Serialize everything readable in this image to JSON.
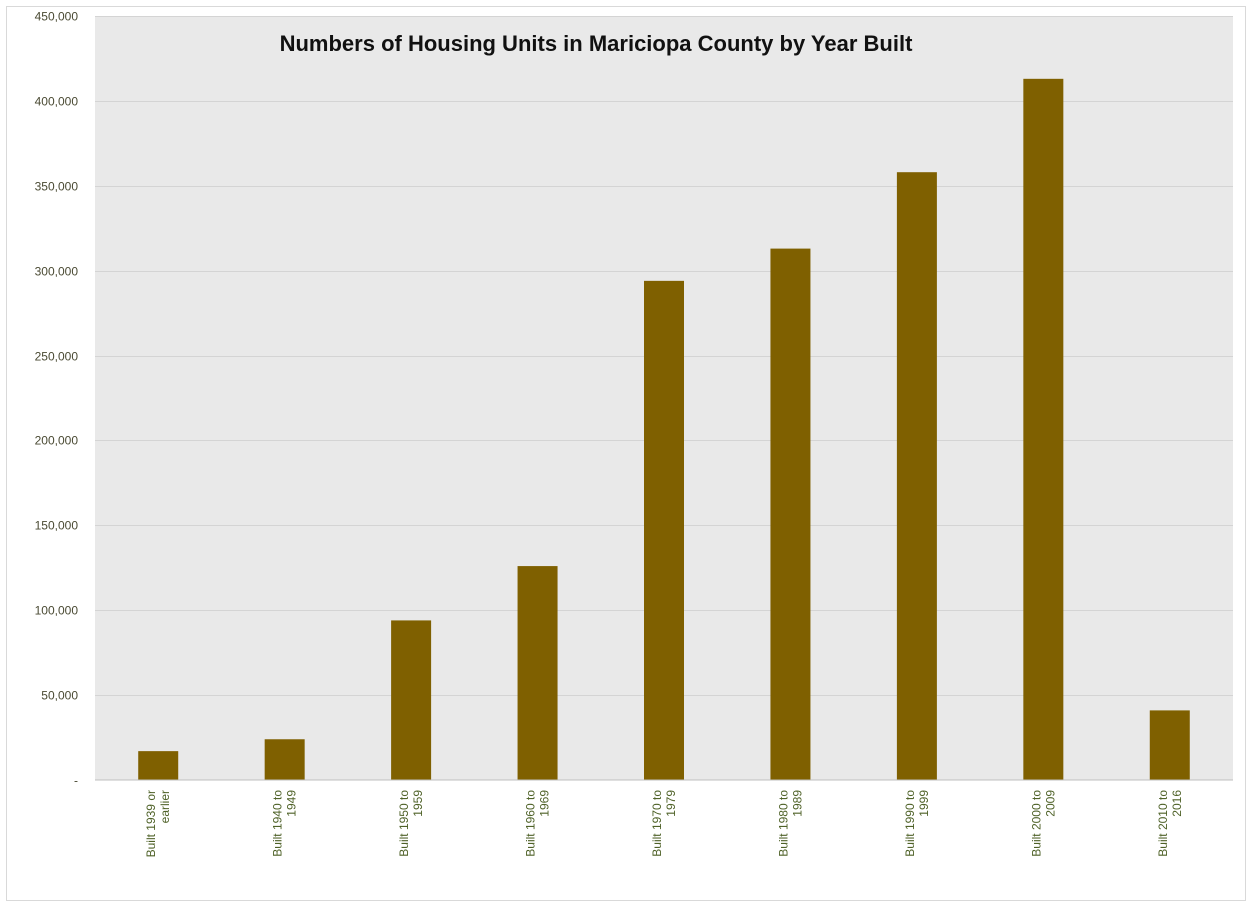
{
  "chart_data": {
    "type": "bar",
    "title": "Numbers of Housing Units in Mariciopa County by Year Built",
    "xlabel": "",
    "ylabel": "",
    "categories": [
      [
        "Built 1939 or",
        "earlier"
      ],
      [
        "Built 1940 to",
        "1949"
      ],
      [
        "Built 1950 to",
        "1959"
      ],
      [
        "Built 1960 to",
        "1969"
      ],
      [
        "Built 1970 to",
        "1979"
      ],
      [
        "Built 1980 to",
        "1989"
      ],
      [
        "Built 1990 to",
        "1999"
      ],
      [
        "Built 2000 to",
        "2009"
      ],
      [
        "Built 2010 to",
        "2016"
      ]
    ],
    "values": [
      17000,
      24000,
      94000,
      126000,
      294000,
      313000,
      358000,
      413000,
      41000
    ],
    "ylim": [
      0,
      450000
    ],
    "yticks": [
      0,
      50000,
      100000,
      150000,
      200000,
      250000,
      300000,
      350000,
      400000,
      450000
    ],
    "ytick_labels": [
      "-",
      "50,000",
      "100,000",
      "150,000",
      "200,000",
      "250,000",
      "300,000",
      "350,000",
      "400,000",
      "450,000"
    ],
    "grid": true,
    "legend": "none",
    "colors": {
      "bar": "#7f6000",
      "plot_background": "#e9e9e9",
      "gridline": "#d4d4d4",
      "x_tick_text": "#4f6228"
    }
  }
}
